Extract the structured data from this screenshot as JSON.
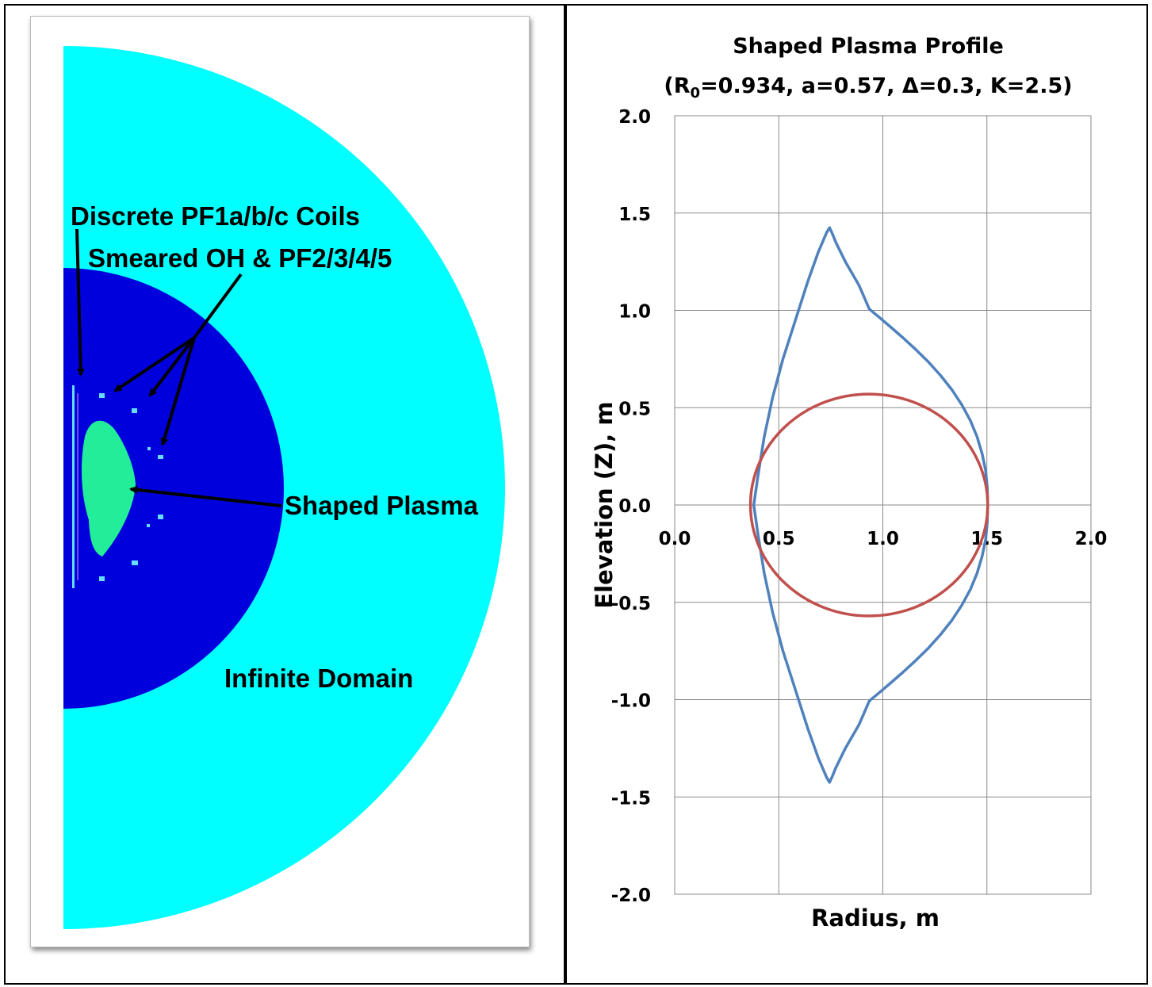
{
  "left_panel": {
    "labels": {
      "coils_discrete": "Discrete PF1a/b/c Coils",
      "coils_smeared": "Smeared OH & PF2/3/4/5",
      "plasma": "Shaped Plasma",
      "domain": "Infinite Domain"
    },
    "colors": {
      "outer_domain": "#00FFFF",
      "inner_domain": "#0000DD",
      "plasma": "#22EE99",
      "coil": "#66DDFF",
      "arrow": "#000000"
    }
  },
  "chart_data": {
    "type": "line",
    "title": "Shaped Plasma Profile",
    "subtitle": "(R0=0.934, a=0.57, Δ=0.3, K=2.5)",
    "title_parts": {
      "prefix": "(R",
      "subscript": "0",
      "rest": "=0.934, a=0.57, Δ=0.3, K=2.5)"
    },
    "xlabel": "Radius, m",
    "ylabel": "Elevation (Z), m",
    "xlim": [
      0.0,
      2.0
    ],
    "ylim": [
      -2.0,
      2.0
    ],
    "x_ticks": [
      "0.0",
      "0.5",
      "1.0",
      "1.5",
      "2.0"
    ],
    "y_ticks": [
      "2.0",
      "1.5",
      "1.0",
      "0.5",
      "0.0",
      "-0.5",
      "-1.0",
      "-1.5",
      "-2.0"
    ],
    "grid": true,
    "legend": "none",
    "parameters": {
      "R0": 0.934,
      "a": 0.57,
      "delta": 0.3,
      "kappa": 2.5
    },
    "series": [
      {
        "color": "#4F81BD",
        "points": [
          [
            1.504,
            0.0
          ],
          [
            1.502,
            0.089
          ],
          [
            1.494,
            0.177
          ],
          [
            1.477,
            0.264
          ],
          [
            1.453,
            0.35
          ],
          [
            1.421,
            0.433
          ],
          [
            1.38,
            0.514
          ],
          [
            1.332,
            0.592
          ],
          [
            1.278,
            0.665
          ],
          [
            1.219,
            0.735
          ],
          [
            1.157,
            0.8
          ],
          [
            1.096,
            0.86
          ],
          [
            1.037,
            0.915
          ],
          [
            0.983,
            0.964
          ],
          [
            0.935,
            1.007
          ],
          [
            0.885,
            1.13
          ],
          [
            0.82,
            1.25
          ],
          [
            0.774,
            1.35
          ],
          [
            0.757,
            1.395
          ],
          [
            0.744,
            1.425
          ],
          [
            0.73,
            1.4
          ],
          [
            0.69,
            1.3
          ],
          [
            0.64,
            1.15
          ],
          [
            0.58,
            0.95
          ],
          [
            0.52,
            0.75
          ],
          [
            0.47,
            0.55
          ],
          [
            0.43,
            0.35
          ],
          [
            0.4,
            0.15
          ],
          [
            0.38,
            0.0
          ],
          [
            0.4,
            -0.15
          ],
          [
            0.43,
            -0.35
          ],
          [
            0.47,
            -0.55
          ],
          [
            0.52,
            -0.75
          ],
          [
            0.58,
            -0.95
          ],
          [
            0.64,
            -1.15
          ],
          [
            0.69,
            -1.3
          ],
          [
            0.73,
            -1.4
          ],
          [
            0.744,
            -1.425
          ],
          [
            0.757,
            -1.395
          ],
          [
            0.774,
            -1.35
          ],
          [
            0.82,
            -1.25
          ],
          [
            0.885,
            -1.13
          ],
          [
            0.935,
            -1.007
          ],
          [
            0.983,
            -0.964
          ],
          [
            1.037,
            -0.915
          ],
          [
            1.096,
            -0.86
          ],
          [
            1.157,
            -0.8
          ],
          [
            1.219,
            -0.735
          ],
          [
            1.278,
            -0.665
          ],
          [
            1.332,
            -0.592
          ],
          [
            1.38,
            -0.514
          ],
          [
            1.421,
            -0.433
          ],
          [
            1.453,
            -0.35
          ],
          [
            1.477,
            -0.264
          ],
          [
            1.494,
            -0.177
          ],
          [
            1.502,
            -0.089
          ],
          [
            1.504,
            0.0
          ]
        ]
      },
      {
        "color": "#C0504D",
        "center": [
          0.934,
          0.0
        ],
        "radius": 0.57
      }
    ]
  }
}
